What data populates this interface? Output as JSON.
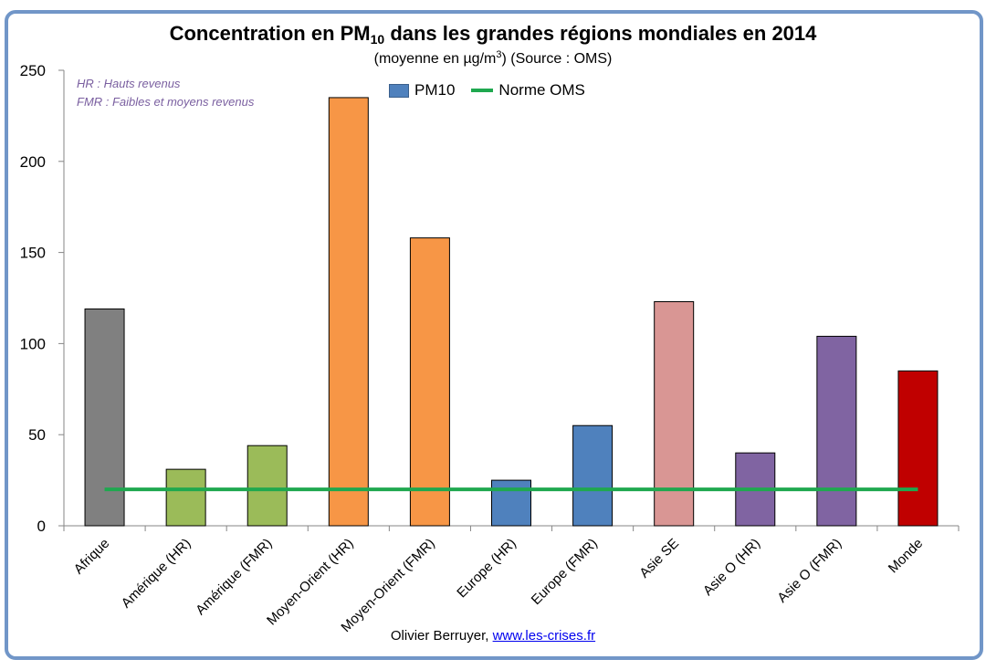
{
  "header": {
    "title_main": "Concentration en PM",
    "title_sub": "10",
    "title_rest": " dans les grandes régions mondiales en 2014",
    "subtitle_main": "(moyenne en µg/m",
    "subtitle_sup": "3",
    "subtitle_rest": ") (Source : OMS)"
  },
  "notes": [
    "HR : Hauts revenus",
    "FMR : Faibles et moyens revenus"
  ],
  "legend": {
    "bars": "PM10",
    "line": "Norme OMS"
  },
  "credit": {
    "author": "Olivier Berruyer,",
    "link": "www.les-crises.fr"
  },
  "colors": {
    "line": "#1fa84f",
    "bars": [
      "#808080",
      "#9bbb59",
      "#9bbb59",
      "#f79646",
      "#f79646",
      "#4f81bd",
      "#4f81bd",
      "#d99694",
      "#8064a2",
      "#8064a2",
      "#c00000"
    ]
  },
  "chart_data": {
    "type": "bar",
    "title": "Concentration en PM10 dans les grandes régions mondiales en 2014",
    "subtitle": "(moyenne en µg/m3) (Source : OMS)",
    "categories": [
      "Afrique",
      "Amérique (HR)",
      "Amérique (FMR)",
      "Moyen-Orient (HR)",
      "Moyen-Orient (FMR)",
      "Europe (HR)",
      "Europe (FMR)",
      "Asie SE",
      "Asie O (HR)",
      "Asie O (FMR)",
      "Monde"
    ],
    "series": [
      {
        "name": "PM10",
        "type": "bar",
        "values": [
          119,
          31,
          44,
          235,
          158,
          25,
          55,
          123,
          40,
          104,
          85
        ]
      },
      {
        "name": "Norme OMS",
        "type": "line",
        "values": [
          20,
          20,
          20,
          20,
          20,
          20,
          20,
          20,
          20,
          20,
          20
        ]
      }
    ],
    "ylim": [
      0,
      250
    ],
    "yticks": [
      0,
      50,
      100,
      150,
      200,
      250
    ],
    "grid": false,
    "legend_position": "top"
  }
}
